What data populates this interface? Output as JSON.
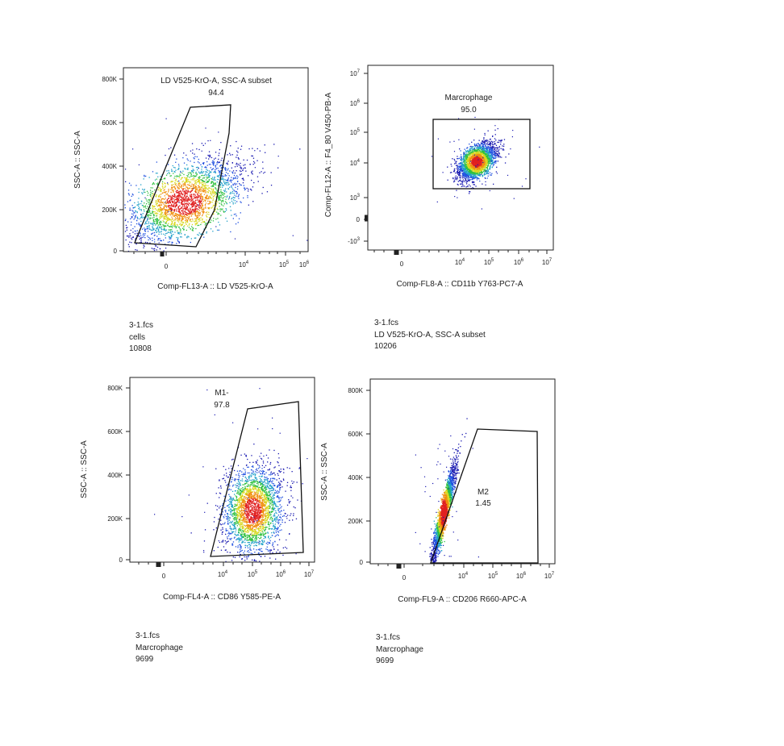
{
  "chart_data": [
    {
      "type": "scatter",
      "plot_style": "pseudocolor-density",
      "x_axis": {
        "label": "Comp-FL13-A :: LD V525-KrO-A",
        "scale": "biexponential",
        "ticks": [
          "0",
          "10^4",
          "10^5",
          "10^6"
        ]
      },
      "y_axis": {
        "label": "SSC-A :: SSC-A",
        "scale": "linear",
        "range": [
          0,
          850000
        ],
        "ticks": [
          "0",
          "200K",
          "400K",
          "600K",
          "800K"
        ]
      },
      "gate": {
        "name": "LD V525-KrO-A, SSC-A subset",
        "percent": "94.4",
        "shape": "polygon"
      },
      "info": {
        "file": "3-1.fcs",
        "population": "cells",
        "count": "10808"
      },
      "cloud": {
        "center": [
          2.45,
          230000
        ],
        "spread": [
          0.75,
          100000
        ],
        "n": 2600
      }
    },
    {
      "type": "scatter",
      "plot_style": "pseudocolor-density",
      "x_axis": {
        "label": "Comp-FL8-A :: CD11b Y763-PC7-A",
        "scale": "biexponential",
        "ticks": [
          "0",
          "10^4",
          "10^5",
          "10^6",
          "10^7"
        ]
      },
      "y_axis": {
        "label": "Comp-FL12-A :: F4_80 V450-PB-A",
        "scale": "biexponential",
        "ticks": [
          "-10^3",
          "0",
          "10^3",
          "10^4",
          "10^5",
          "10^6",
          "10^7"
        ]
      },
      "gate": {
        "name": "Marcrophage",
        "percent": "95.0",
        "shape": "rectangle"
      },
      "info": {
        "file": "3-1.fcs",
        "population": "LD V525-KrO-A, SSC-A subset",
        "count": "10206"
      },
      "cloud": {
        "center": [
          4.55,
          4.05
        ],
        "spread": [
          0.32,
          0.3
        ],
        "n": 2400
      }
    },
    {
      "type": "scatter",
      "plot_style": "pseudocolor-density",
      "x_axis": {
        "label": "Comp-FL4-A :: CD86 Y585-PE-A",
        "scale": "biexponential",
        "ticks": [
          "0",
          "10^4",
          "10^5",
          "10^6",
          "10^7"
        ]
      },
      "y_axis": {
        "label": "SSC-A :: SSC-A",
        "scale": "linear",
        "range": [
          0,
          850000
        ],
        "ticks": [
          "0",
          "200K",
          "400K",
          "600K",
          "800K"
        ]
      },
      "gate": {
        "name": "M1-",
        "percent": "97.8",
        "shape": "polygon"
      },
      "info": {
        "file": "3-1.fcs",
        "population": "Marcrophage",
        "count": "9699"
      },
      "cloud": {
        "center": [
          5.0,
          230000
        ],
        "spread": [
          0.5,
          100000
        ],
        "n": 2600
      }
    },
    {
      "type": "scatter",
      "plot_style": "pseudocolor-density",
      "x_axis": {
        "label": "Comp-FL9-A :: CD206 R660-APC-A",
        "scale": "biexponential",
        "ticks": [
          "0",
          "10^4",
          "10^5",
          "10^6",
          "10^7"
        ]
      },
      "y_axis": {
        "label": "SSC-A :: SSC-A",
        "scale": "linear",
        "range": [
          0,
          850000
        ],
        "ticks": [
          "0",
          "200K",
          "400K",
          "600K",
          "800K"
        ]
      },
      "gate": {
        "name": "M2",
        "percent": "1.45",
        "shape": "polygon"
      },
      "info": {
        "file": "3-1.fcs",
        "population": "Marcrophage",
        "count": "9699"
      },
      "cloud": {
        "center": [
          3.3,
          230000
        ],
        "spread": [
          0.2,
          110000
        ],
        "n": 2200
      }
    }
  ]
}
